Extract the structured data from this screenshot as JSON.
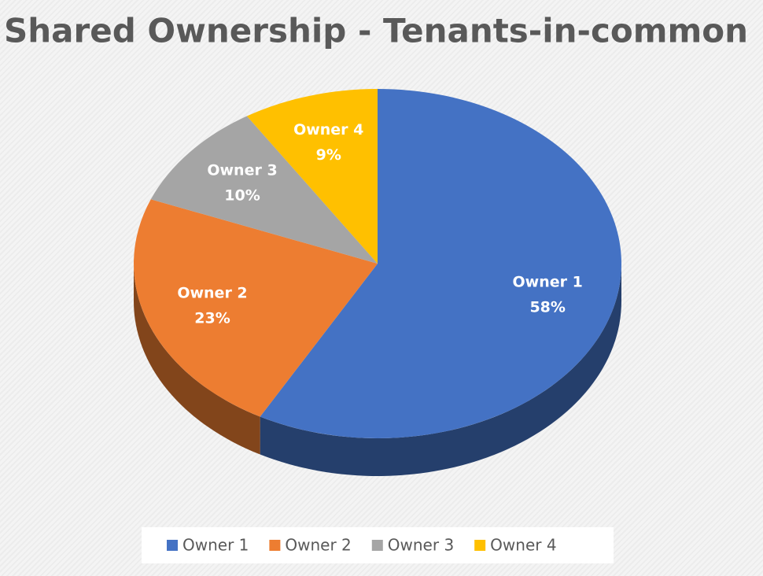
{
  "chart_data": {
    "type": "pie",
    "title": "Shared Ownership - Tenants-in-common",
    "categories": [
      "Owner 1",
      "Owner 2",
      "Owner 3",
      "Owner 4"
    ],
    "values": [
      58,
      23,
      10,
      9
    ],
    "value_labels": [
      "58%",
      "23%",
      "10%",
      "9%"
    ],
    "colors": [
      "#4472c4",
      "#ed7d31",
      "#a5a5a5",
      "#ffc000"
    ],
    "legend": "bottom"
  }
}
